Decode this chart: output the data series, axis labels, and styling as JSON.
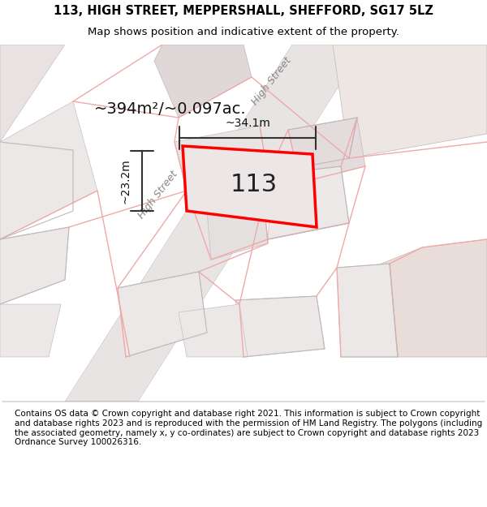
{
  "title_line1": "113, HIGH STREET, MEPPERSHALL, SHEFFORD, SG17 5LZ",
  "title_line2": "Map shows position and indicative extent of the property.",
  "footer_text": "Contains OS data © Crown copyright and database right 2021. This information is subject to Crown copyright and database rights 2023 and is reproduced with the permission of HM Land Registry. The polygons (including the associated geometry, namely x, y co-ordinates) are subject to Crown copyright and database rights 2023 Ordnance Survey 100026316.",
  "area_label": "~394m²/~0.097ac.",
  "property_number": "113",
  "dim_width": "~34.1m",
  "dim_height": "~23.2m",
  "street_label": "High Street",
  "map_bg": "#f5f0f0",
  "road_color": "#e8e0e0",
  "road_fill": "#f0eded",
  "plot_color": "#ff0000",
  "plot_fill": "#e8e0e0",
  "building_fill": "#d8d0d0",
  "dim_color": "#444444",
  "title_fontsize": 10.5,
  "subtitle_fontsize": 9.5,
  "footer_fontsize": 7.5
}
